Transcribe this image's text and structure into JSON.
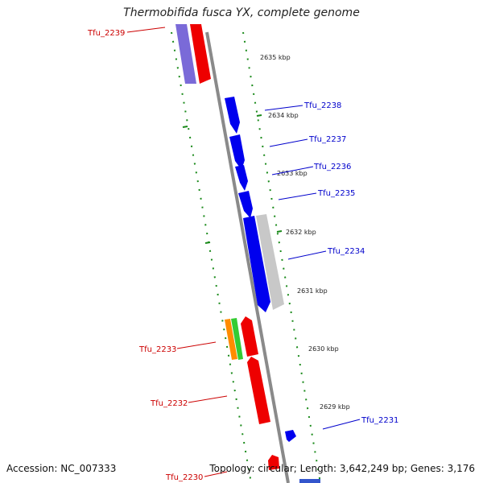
{
  "title": "Thermobifida fusca YX, complete genome",
  "accession_label": "Accession: NC_007333",
  "topology_label": "Topology: circular; Length: 3,642,249 bp; Genes: 3,176",
  "colors": {
    "backbone": "#8a8a8a",
    "ticks": "#1a8a1a",
    "reverse_label": "#cc0000",
    "forward_label": "#0000cc",
    "blue": "#0000ee",
    "red": "#ee0000",
    "gray": "#c8c8c8",
    "purple": "#7a6ad8",
    "orange": "#ff8c00",
    "green": "#33cc33"
  },
  "kbp_ticks": [
    "2635 kbp",
    "2634 kbp",
    "2633 kbp",
    "2632 kbp",
    "2631 kbp",
    "2630 kbp",
    "2629 kbp"
  ],
  "genes": [
    {
      "name": "Tfu_2239",
      "strand": "reverse"
    },
    {
      "name": "Tfu_2238",
      "strand": "forward"
    },
    {
      "name": "Tfu_2237",
      "strand": "forward"
    },
    {
      "name": "Tfu_2236",
      "strand": "forward"
    },
    {
      "name": "Tfu_2235",
      "strand": "forward"
    },
    {
      "name": "Tfu_2234",
      "strand": "forward"
    },
    {
      "name": "Tfu_2233",
      "strand": "reverse"
    },
    {
      "name": "Tfu_2232",
      "strand": "reverse"
    },
    {
      "name": "Tfu_2231",
      "strand": "forward"
    },
    {
      "name": "Tfu_2230",
      "strand": "reverse"
    }
  ]
}
